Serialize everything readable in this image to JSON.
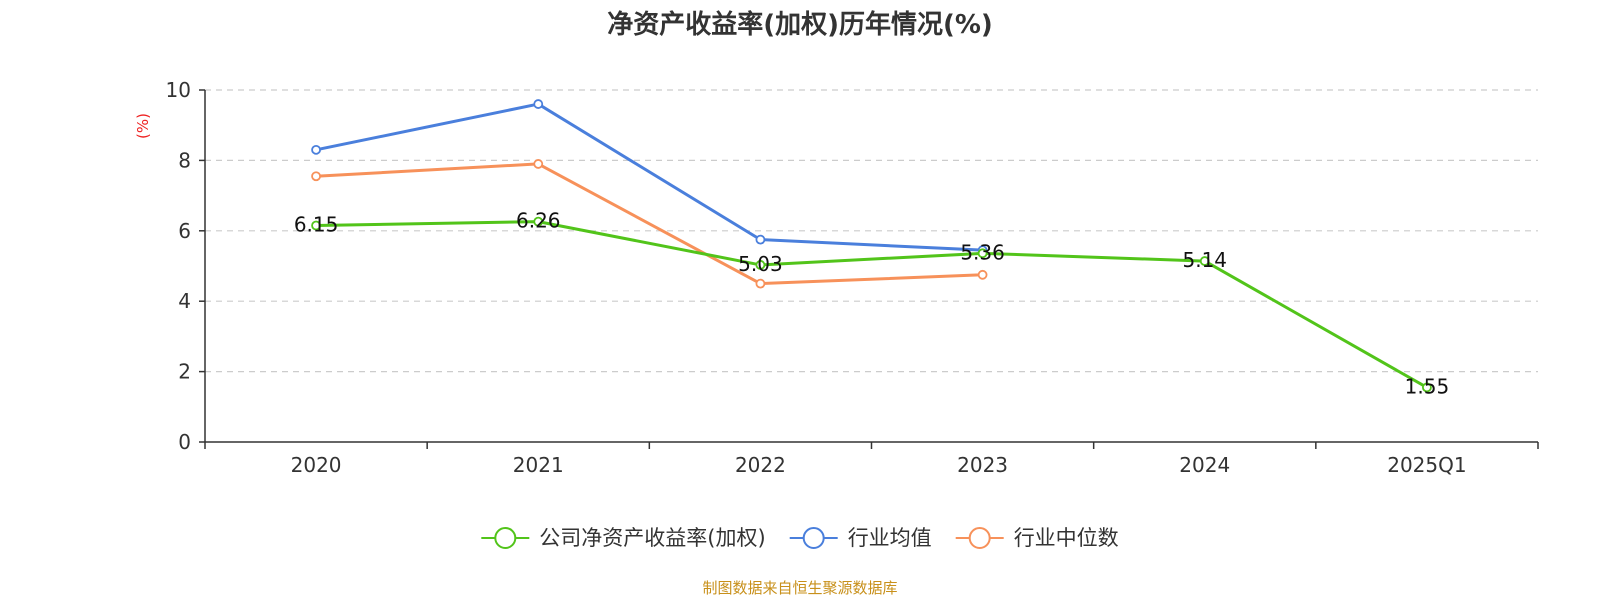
{
  "chart_data": {
    "type": "line",
    "title": "净资产收益率(加权)历年情况(%)",
    "ylabel": "(%)",
    "xlabel": "",
    "categories": [
      "2020",
      "2021",
      "2022",
      "2023",
      "2024",
      "2025Q1"
    ],
    "ylim": [
      0,
      10
    ],
    "yticks": [
      0,
      2,
      4,
      6,
      8,
      10
    ],
    "grid": true,
    "legend_position": "bottom",
    "series": [
      {
        "name": "公司净资产收益率(加权)",
        "color": "#52c41a",
        "values": [
          6.15,
          6.26,
          5.03,
          5.36,
          5.14,
          1.55
        ],
        "data_labels": [
          "6.15",
          "6.26",
          "5.03",
          "5.36",
          "5.14",
          "1.55"
        ],
        "show_labels": true
      },
      {
        "name": "行业均值",
        "color": "#4a7fdc",
        "values": [
          8.3,
          9.6,
          5.75,
          5.45,
          null,
          null
        ],
        "show_labels": false
      },
      {
        "name": "行业中位数",
        "color": "#f7915a",
        "values": [
          7.55,
          7.9,
          4.5,
          4.75,
          null,
          null
        ],
        "show_labels": false
      }
    ],
    "source": "制图数据来自恒生聚源数据库",
    "source_color": "#c8901a",
    "ylabel_color": "#ee2222"
  }
}
